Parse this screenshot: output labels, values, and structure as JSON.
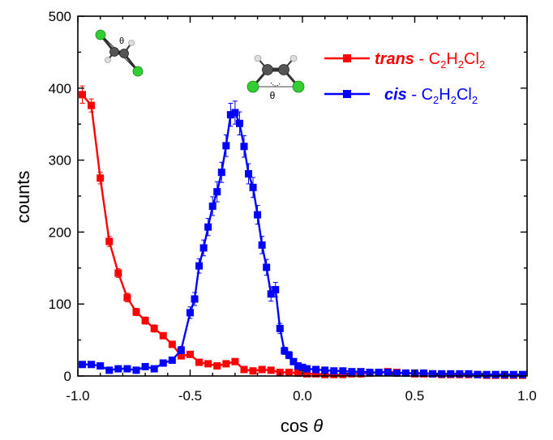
{
  "chart_data": {
    "type": "line",
    "xlabel": "cos θ",
    "xlabel_prefix": "cos",
    "xlabel_symbol": "θ",
    "ylabel": "counts",
    "xlim": [
      -1.0,
      1.0
    ],
    "ylim": [
      0,
      500
    ],
    "xticks": [
      "-1.0",
      "-0.5",
      "0.0",
      "0.5",
      "1.0"
    ],
    "yticks": [
      "0",
      "100",
      "200",
      "300",
      "400",
      "500"
    ],
    "xtick_values": [
      -1.0,
      -0.5,
      0.0,
      0.5,
      1.0
    ],
    "ytick_values": [
      0,
      100,
      200,
      300,
      400,
      500
    ],
    "legend_position": "top-right",
    "series": [
      {
        "name": "trans - C2H2Cl2",
        "legend_italic": "trans",
        "legend_rest": " - C",
        "legend_sub1": "2",
        "legend_mid1": "H",
        "legend_sub2": "2",
        "legend_mid2": "Cl",
        "legend_sub3": "2",
        "color": "#ff0000",
        "x": [
          -0.98,
          -0.94,
          -0.9,
          -0.86,
          -0.82,
          -0.78,
          -0.74,
          -0.7,
          -0.66,
          -0.62,
          -0.58,
          -0.54,
          -0.5,
          -0.46,
          -0.42,
          -0.38,
          -0.34,
          -0.3,
          -0.26,
          -0.22,
          -0.18,
          -0.14,
          -0.1,
          -0.06,
          -0.02,
          0.02,
          0.06,
          0.1,
          0.14,
          0.18,
          0.22,
          0.26,
          0.3,
          0.34,
          0.38,
          0.42,
          0.46,
          0.5,
          0.54,
          0.58,
          0.62,
          0.66,
          0.7,
          0.74,
          0.78,
          0.82,
          0.86,
          0.9,
          0.94,
          0.98
        ],
        "y": [
          391,
          376,
          275,
          187,
          143,
          109,
          89,
          77,
          66,
          56,
          44,
          28,
          30,
          19,
          17,
          14,
          17,
          20,
          9,
          7,
          9,
          8,
          5,
          5,
          4,
          3,
          3,
          2,
          2,
          2,
          3,
          3,
          4,
          5,
          6,
          5,
          4,
          3,
          3,
          3,
          2,
          2,
          2,
          2,
          2,
          1,
          1,
          1,
          1,
          1
        ],
        "err": [
          12,
          9,
          8,
          7,
          6,
          6,
          5,
          5,
          5,
          4,
          4,
          3,
          3,
          3,
          3,
          3,
          3,
          3,
          2,
          2,
          2,
          2,
          2,
          2,
          2,
          2,
          2,
          2,
          2,
          2,
          2,
          2,
          2,
          2,
          2,
          2,
          2,
          2,
          2,
          2,
          2,
          2,
          2,
          2,
          2,
          2,
          2,
          2,
          2,
          2
        ]
      },
      {
        "name": "cis - C2H2Cl2",
        "legend_italic": "cis",
        "legend_rest": " - C",
        "legend_sub1": "2",
        "legend_mid1": "H",
        "legend_sub2": "2",
        "legend_mid2": "Cl",
        "legend_sub3": "2",
        "color": "#0000ff",
        "x": [
          -0.98,
          -0.94,
          -0.9,
          -0.86,
          -0.82,
          -0.78,
          -0.74,
          -0.7,
          -0.66,
          -0.62,
          -0.58,
          -0.54,
          -0.5,
          -0.48,
          -0.46,
          -0.44,
          -0.42,
          -0.4,
          -0.38,
          -0.36,
          -0.34,
          -0.32,
          -0.3,
          -0.28,
          -0.26,
          -0.24,
          -0.22,
          -0.2,
          -0.18,
          -0.16,
          -0.14,
          -0.12,
          -0.1,
          -0.08,
          -0.06,
          -0.04,
          -0.02,
          0.0,
          0.02,
          0.06,
          0.1,
          0.14,
          0.18,
          0.22,
          0.26,
          0.3,
          0.34,
          0.38,
          0.42,
          0.46,
          0.5,
          0.54,
          0.58,
          0.62,
          0.66,
          0.7,
          0.74,
          0.78,
          0.82,
          0.86,
          0.9,
          0.94,
          0.98
        ],
        "y": [
          16,
          16,
          14,
          8,
          10,
          10,
          8,
          13,
          10,
          18,
          22,
          36,
          88,
          107,
          153,
          178,
          207,
          236,
          256,
          283,
          320,
          363,
          366,
          351,
          319,
          281,
          262,
          224,
          182,
          151,
          114,
          120,
          66,
          35,
          29,
          20,
          14,
          12,
          10,
          9,
          8,
          7,
          7,
          6,
          6,
          5,
          5,
          5,
          4,
          4,
          4,
          4,
          3,
          3,
          3,
          3,
          3,
          2,
          2,
          2,
          2,
          2,
          2
        ],
        "err": [
          3,
          3,
          3,
          3,
          3,
          3,
          3,
          3,
          3,
          4,
          4,
          5,
          8,
          9,
          10,
          11,
          12,
          13,
          14,
          14,
          15,
          16,
          16,
          16,
          15,
          14,
          14,
          13,
          12,
          11,
          10,
          10,
          7,
          5,
          5,
          4,
          3,
          3,
          3,
          3,
          3,
          2,
          2,
          2,
          2,
          2,
          2,
          2,
          2,
          2,
          2,
          2,
          2,
          2,
          2,
          2,
          2,
          2,
          2,
          2,
          2,
          2,
          2
        ]
      }
    ],
    "insets": [
      {
        "kind": "molecule",
        "variant": "trans",
        "label": "θ"
      },
      {
        "kind": "molecule",
        "variant": "cis",
        "label": "θ"
      }
    ]
  }
}
